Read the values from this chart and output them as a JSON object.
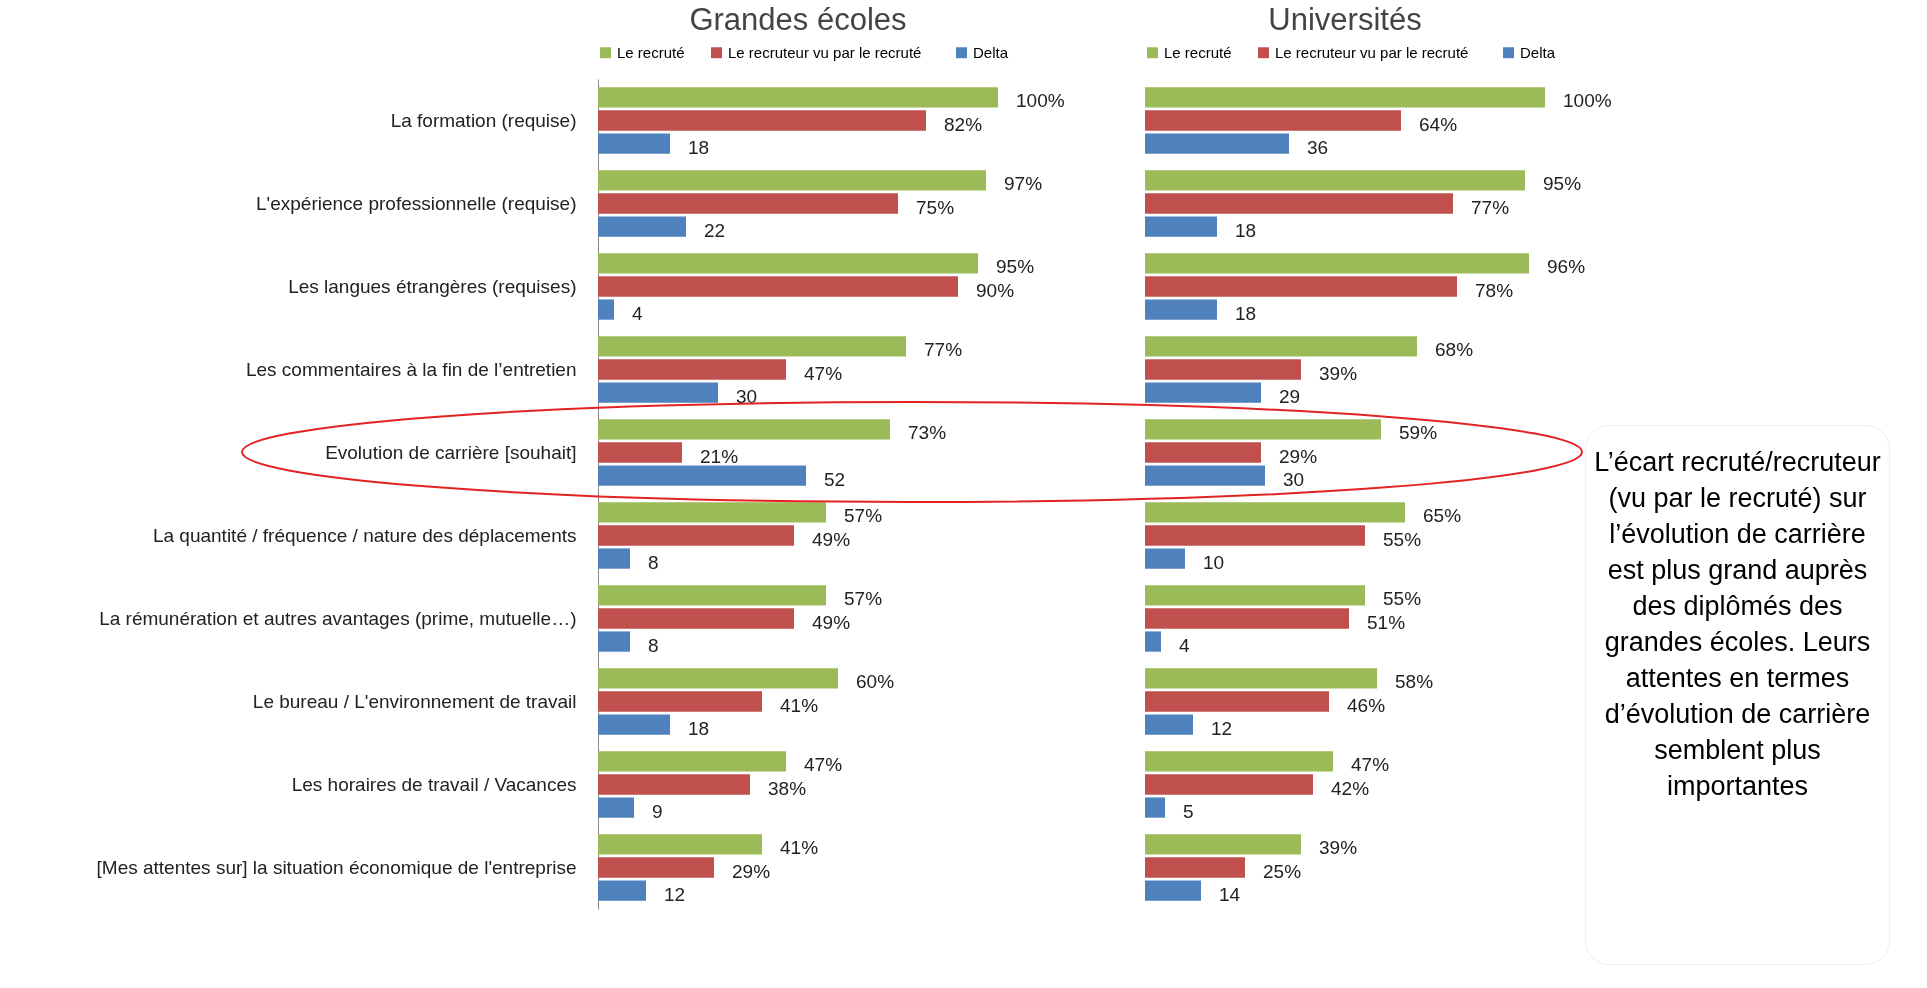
{
  "chart_data": [
    {
      "type": "bar",
      "orientation": "horizontal",
      "title": "Grandes écoles",
      "legend": "top",
      "tick_labels": "y",
      "categories": [
        "La formation (requise)",
        "L'expérience professionnelle  (requise)",
        "Les langues étrangères (requises)",
        "Les commentaires à la fin de l’entretien",
        "Evolution de carrière [souhait]",
        "La quantité  / fréquence / nature des déplacements",
        "La rémunération et autres avantages (prime, mutuelle…)",
        "Le bureau / L'environnement de travail",
        "Les horaires de travail  / Vacances",
        "[Mes attentes  sur] la situation  économique de l'entreprise"
      ],
      "series": [
        {
          "name": "Le recruté",
          "color": "#9bbb59",
          "values": [
            100,
            97,
            95,
            77,
            73,
            57,
            57,
            60,
            47,
            41
          ],
          "value_labels": [
            "100%",
            "97%",
            "95%",
            "77%",
            "73%",
            "57%",
            "57%",
            "60%",
            "47%",
            "41%"
          ]
        },
        {
          "name": "Le recruteur  vu par  le recruté",
          "color": "#c0504d",
          "values": [
            82,
            75,
            90,
            47,
            21,
            49,
            49,
            41,
            38,
            29
          ],
          "value_labels": [
            "82%",
            "75%",
            "90%",
            "47%",
            "21%",
            "49%",
            "49%",
            "41%",
            "38%",
            "29%"
          ]
        },
        {
          "name": "Delta",
          "color": "#4f81bd",
          "values": [
            18,
            22,
            4,
            30,
            52,
            8,
            8,
            18,
            9,
            12
          ],
          "value_labels": [
            "18",
            "22",
            "4",
            "30",
            "52",
            "8",
            "8",
            "18",
            "9",
            "12"
          ]
        }
      ]
    },
    {
      "type": "bar",
      "orientation": "horizontal",
      "title": "Universités",
      "legend": "top",
      "tick_labels": false,
      "categories": [
        null,
        null,
        null,
        null,
        null,
        null,
        null,
        null,
        null,
        null
      ],
      "series": [
        {
          "name": "Le recruté",
          "color": "#9bbb59",
          "values": [
            100,
            95,
            96,
            68,
            59,
            65,
            55,
            58,
            47,
            39
          ],
          "value_labels": [
            "100%",
            "95%",
            "96%",
            "68%",
            "59%",
            "65%",
            "55%",
            "58%",
            "47%",
            "39%"
          ]
        },
        {
          "name": "Le recruteur  vu par  le recruté",
          "color": "#c0504d",
          "values": [
            64,
            77,
            78,
            39,
            29,
            55,
            51,
            46,
            42,
            25
          ],
          "value_labels": [
            "64%",
            "77%",
            "78%",
            "39%",
            "29%",
            "55%",
            "51%",
            "46%",
            "42%",
            "25%"
          ]
        },
        {
          "name": "Delta",
          "color": "#4f81bd",
          "values": [
            36,
            18,
            18,
            29,
            30,
            10,
            4,
            12,
            5,
            14
          ],
          "value_labels": [
            "36",
            "18",
            "18",
            "29",
            "30",
            "10",
            "4",
            "12",
            "5",
            "14"
          ]
        }
      ],
      "annotations": [
        "L’écart recruté/recruteur (vu par le recruté) sur l’évolution de carrière est plus grand auprès des diplômés des grandes écoles. Leurs attentes en termes d’évolution de carrière semblent plus importantes"
      ]
    }
  ]
}
